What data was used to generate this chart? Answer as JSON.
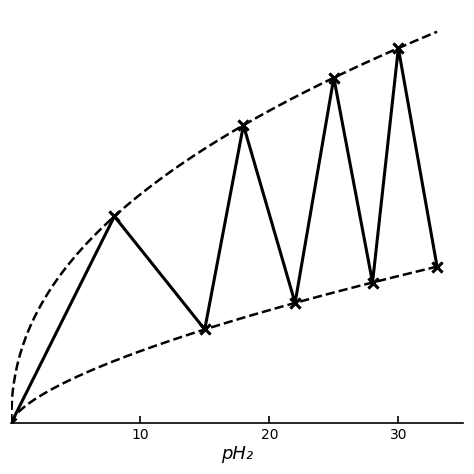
{
  "xlabel": "pH₂",
  "xlim": [
    0,
    35
  ],
  "ylim": [
    0,
    1.0
  ],
  "xticks": [
    10,
    20,
    30
  ],
  "yticks": [],
  "upper_curve_params": {
    "scale": 0.95,
    "power": 0.45,
    "xmax": 33
  },
  "lower_curve_params": {
    "scale": 0.38,
    "power": 0.65,
    "xmax": 33
  },
  "solid_x": [
    0,
    8,
    15,
    18,
    22,
    25,
    28,
    30,
    33
  ],
  "solid_upper": [
    true,
    true,
    true,
    false,
    true,
    false,
    true,
    false,
    true
  ],
  "line_color": "#000000",
  "dashed_color": "#000000",
  "marker": "x",
  "marker_size": 7,
  "linewidth": 2.2,
  "dashed_linewidth": 1.8,
  "background_color": "#ffffff",
  "xlabel_fontsize": 13,
  "figsize": [
    4.74,
    4.74
  ],
  "dpi": 100
}
